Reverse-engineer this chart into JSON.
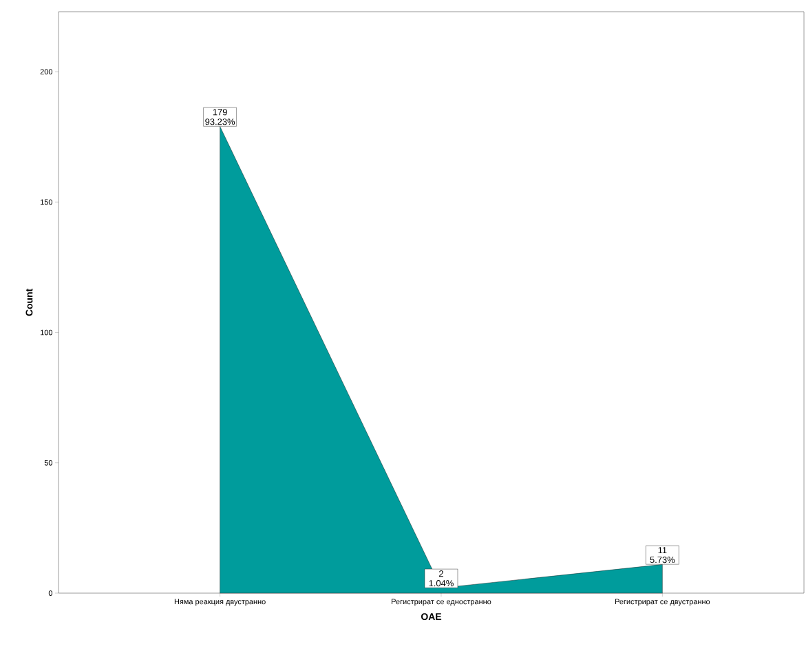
{
  "chart_data": {
    "type": "area",
    "xlabel": "OAE",
    "ylabel": "Count",
    "categories": [
      "Няма реакция двустранно",
      "Регистрират се едностранно",
      "Регистрират се двустранно"
    ],
    "values": [
      179,
      2,
      11
    ],
    "color": "#009c9c",
    "value_labels": [
      "179 93.23%",
      "2 1.04%",
      "11 5.73%"
    ],
    "ylim": [
      0,
      223
    ],
    "yticks": [
      0,
      50,
      100,
      150,
      200
    ],
    "grid": false
  }
}
